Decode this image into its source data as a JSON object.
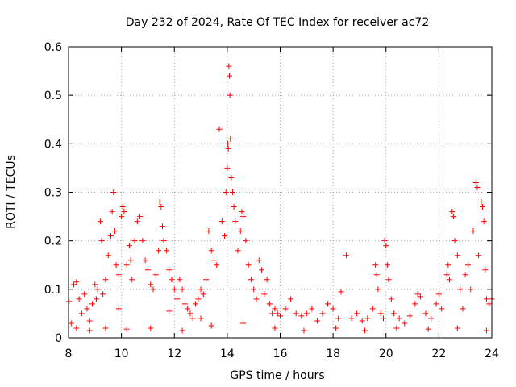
{
  "chart_data": {
    "type": "scatter",
    "title": "Day 232 of 2024, Rate Of TEC Index for receiver ac72",
    "xlabel": "GPS time / hours",
    "ylabel": "ROTI / TECUs",
    "xlim": [
      8,
      24
    ],
    "ylim": [
      0,
      0.6
    ],
    "grid": true,
    "marker": "+",
    "color": "#ff0000",
    "x_ticks": [
      8,
      10,
      12,
      14,
      16,
      18,
      20,
      22,
      24
    ],
    "x_tick_labels": [
      "8",
      "10",
      "12",
      "14",
      "16",
      "18",
      "20",
      "22",
      "24"
    ],
    "y_ticks": [
      0,
      0.1,
      0.2,
      0.3,
      0.4,
      0.5,
      0.6
    ],
    "y_tick_labels": [
      "0",
      "0.1",
      "0.2",
      "0.3",
      "0.4",
      "0.5",
      "0.6"
    ],
    "series": [
      {
        "name": "ROTI",
        "points": [
          [
            8.02,
            0.075
          ],
          [
            8.1,
            0.03
          ],
          [
            8.2,
            0.11
          ],
          [
            8.3,
            0.115
          ],
          [
            8.4,
            0.08
          ],
          [
            8.5,
            0.05
          ],
          [
            8.6,
            0.09
          ],
          [
            8.7,
            0.06
          ],
          [
            8.8,
            0.035
          ],
          [
            8.9,
            0.07
          ],
          [
            9.0,
            0.11
          ],
          [
            9.05,
            0.08
          ],
          [
            9.1,
            0.1
          ],
          [
            9.2,
            0.24
          ],
          [
            9.25,
            0.2
          ],
          [
            9.3,
            0.09
          ],
          [
            9.4,
            0.12
          ],
          [
            9.5,
            0.17
          ],
          [
            9.6,
            0.21
          ],
          [
            9.65,
            0.26
          ],
          [
            9.7,
            0.3
          ],
          [
            9.75,
            0.22
          ],
          [
            9.8,
            0.15
          ],
          [
            9.9,
            0.13
          ],
          [
            10.0,
            0.25
          ],
          [
            10.05,
            0.27
          ],
          [
            10.1,
            0.26
          ],
          [
            10.2,
            0.15
          ],
          [
            10.3,
            0.19
          ],
          [
            10.35,
            0.16
          ],
          [
            10.4,
            0.12
          ],
          [
            10.5,
            0.2
          ],
          [
            10.6,
            0.24
          ],
          [
            10.7,
            0.25
          ],
          [
            10.8,
            0.2
          ],
          [
            10.9,
            0.16
          ],
          [
            11.0,
            0.14
          ],
          [
            11.1,
            0.11
          ],
          [
            11.2,
            0.1
          ],
          [
            11.3,
            0.13
          ],
          [
            11.4,
            0.18
          ],
          [
            11.45,
            0.28
          ],
          [
            11.5,
            0.27
          ],
          [
            11.55,
            0.23
          ],
          [
            11.6,
            0.2
          ],
          [
            11.7,
            0.18
          ],
          [
            11.8,
            0.14
          ],
          [
            11.9,
            0.12
          ],
          [
            12.0,
            0.1
          ],
          [
            12.1,
            0.08
          ],
          [
            12.2,
            0.12
          ],
          [
            12.3,
            0.1
          ],
          [
            12.4,
            0.07
          ],
          [
            12.5,
            0.06
          ],
          [
            12.6,
            0.05
          ],
          [
            12.7,
            0.04
          ],
          [
            12.8,
            0.07
          ],
          [
            12.9,
            0.08
          ],
          [
            13.0,
            0.1
          ],
          [
            13.1,
            0.09
          ],
          [
            13.2,
            0.12
          ],
          [
            13.3,
            0.22
          ],
          [
            13.4,
            0.18
          ],
          [
            13.5,
            0.16
          ],
          [
            13.6,
            0.15
          ],
          [
            13.7,
            0.43
          ],
          [
            13.8,
            0.24
          ],
          [
            13.9,
            0.21
          ],
          [
            13.95,
            0.3
          ],
          [
            14.0,
            0.35
          ],
          [
            14.02,
            0.4
          ],
          [
            14.04,
            0.39
          ],
          [
            14.06,
            0.56
          ],
          [
            14.08,
            0.54
          ],
          [
            14.1,
            0.5
          ],
          [
            14.12,
            0.41
          ],
          [
            14.15,
            0.33
          ],
          [
            14.2,
            0.3
          ],
          [
            14.25,
            0.27
          ],
          [
            14.3,
            0.24
          ],
          [
            14.4,
            0.18
          ],
          [
            14.5,
            0.22
          ],
          [
            14.55,
            0.26
          ],
          [
            14.6,
            0.25
          ],
          [
            14.7,
            0.2
          ],
          [
            14.8,
            0.15
          ],
          [
            14.9,
            0.12
          ],
          [
            15.0,
            0.1
          ],
          [
            15.1,
            0.08
          ],
          [
            15.2,
            0.16
          ],
          [
            15.3,
            0.14
          ],
          [
            15.4,
            0.09
          ],
          [
            15.5,
            0.12
          ],
          [
            15.6,
            0.07
          ],
          [
            15.7,
            0.05
          ],
          [
            15.8,
            0.06
          ],
          [
            15.9,
            0.05
          ],
          [
            16.0,
            0.045
          ],
          [
            16.2,
            0.06
          ],
          [
            16.4,
            0.08
          ],
          [
            16.6,
            0.05
          ],
          [
            16.8,
            0.045
          ],
          [
            17.0,
            0.05
          ],
          [
            17.2,
            0.06
          ],
          [
            17.4,
            0.035
          ],
          [
            17.6,
            0.05
          ],
          [
            17.8,
            0.07
          ],
          [
            18.0,
            0.06
          ],
          [
            18.2,
            0.04
          ],
          [
            18.3,
            0.095
          ],
          [
            18.5,
            0.17
          ],
          [
            18.7,
            0.04
          ],
          [
            18.9,
            0.05
          ],
          [
            19.1,
            0.035
          ],
          [
            19.3,
            0.04
          ],
          [
            19.5,
            0.06
          ],
          [
            19.6,
            0.15
          ],
          [
            19.65,
            0.13
          ],
          [
            19.7,
            0.1
          ],
          [
            19.8,
            0.05
          ],
          [
            19.9,
            0.04
          ],
          [
            19.95,
            0.2
          ],
          [
            20.0,
            0.19
          ],
          [
            20.05,
            0.15
          ],
          [
            20.1,
            0.12
          ],
          [
            20.2,
            0.08
          ],
          [
            20.3,
            0.05
          ],
          [
            20.5,
            0.04
          ],
          [
            20.7,
            0.03
          ],
          [
            20.9,
            0.045
          ],
          [
            21.1,
            0.07
          ],
          [
            21.2,
            0.09
          ],
          [
            21.3,
            0.085
          ],
          [
            21.5,
            0.05
          ],
          [
            21.7,
            0.04
          ],
          [
            21.9,
            0.07
          ],
          [
            22.0,
            0.09
          ],
          [
            22.1,
            0.06
          ],
          [
            22.3,
            0.13
          ],
          [
            22.35,
            0.15
          ],
          [
            22.4,
            0.12
          ],
          [
            22.5,
            0.26
          ],
          [
            22.55,
            0.25
          ],
          [
            22.6,
            0.2
          ],
          [
            22.7,
            0.17
          ],
          [
            22.8,
            0.1
          ],
          [
            22.9,
            0.06
          ],
          [
            23.0,
            0.13
          ],
          [
            23.1,
            0.15
          ],
          [
            23.2,
            0.1
          ],
          [
            23.3,
            0.22
          ],
          [
            23.4,
            0.32
          ],
          [
            23.45,
            0.31
          ],
          [
            23.5,
            0.17
          ],
          [
            23.6,
            0.28
          ],
          [
            23.65,
            0.27
          ],
          [
            23.7,
            0.24
          ],
          [
            23.75,
            0.14
          ],
          [
            23.8,
            0.08
          ],
          [
            23.9,
            0.07
          ],
          [
            24.0,
            0.08
          ],
          [
            8.3,
            0.02
          ],
          [
            8.8,
            0.015
          ],
          [
            9.4,
            0.02
          ],
          [
            10.2,
            0.018
          ],
          [
            11.1,
            0.02
          ],
          [
            12.3,
            0.015
          ],
          [
            13.4,
            0.025
          ],
          [
            14.6,
            0.03
          ],
          [
            15.8,
            0.02
          ],
          [
            16.9,
            0.015
          ],
          [
            18.1,
            0.02
          ],
          [
            19.2,
            0.015
          ],
          [
            20.4,
            0.02
          ],
          [
            21.6,
            0.018
          ],
          [
            22.7,
            0.02
          ],
          [
            23.8,
            0.015
          ],
          [
            9.9,
            0.06
          ],
          [
            11.8,
            0.055
          ],
          [
            13.0,
            0.04
          ]
        ]
      }
    ]
  }
}
